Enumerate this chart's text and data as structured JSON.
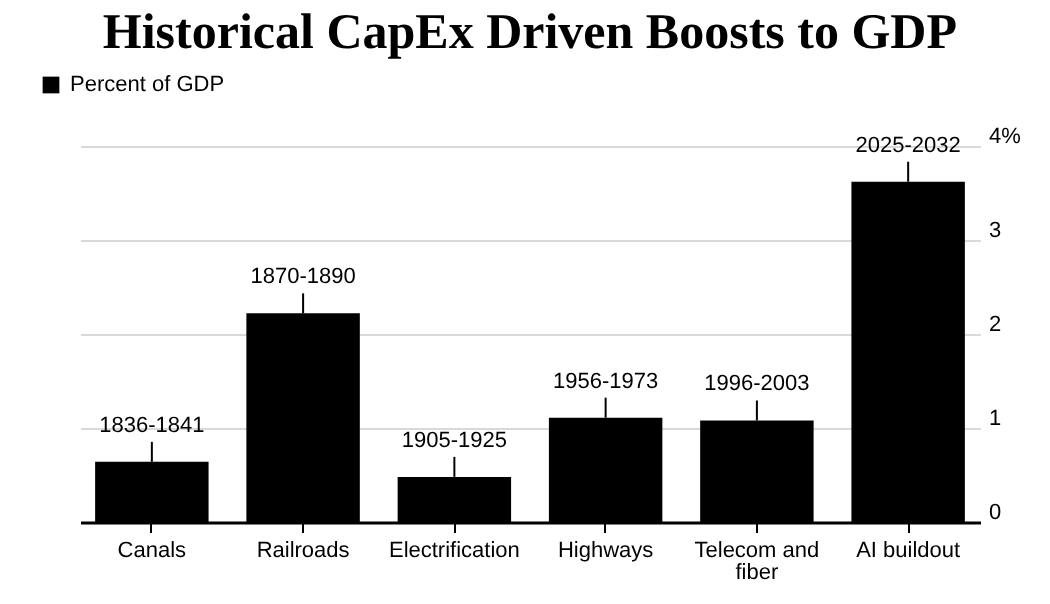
{
  "chart_data": {
    "type": "bar",
    "title": "Historical CapEx Driven Boosts to GDP",
    "categories": [
      "Canals",
      "Railroads",
      "Electrification",
      "Highways",
      "Telecom and fiber",
      "AI buildout"
    ],
    "series": [
      {
        "name": "Percent of GDP",
        "color": "#000000",
        "values": [
          0.64,
          2.22,
          0.48,
          1.11,
          1.08,
          3.62
        ]
      }
    ],
    "ylim": [
      0,
      4
    ],
    "yticks": [
      0,
      1,
      2,
      3,
      {
        "value": 4,
        "label": "4%"
      }
    ],
    "grid": "y",
    "legend": "top left",
    "annotations": [
      {
        "text": "1836-1841",
        "x": "Canals",
        "y": 0.64
      },
      {
        "text": "1870-1890",
        "x": "Railroads",
        "y": 2.22
      },
      {
        "text": "1905-1925",
        "x": "Electrification",
        "y": 0.48
      },
      {
        "text": "1956-1973",
        "x": "Highways",
        "y": 1.11
      },
      {
        "text": "1996-2003",
        "x": "Telecom and fiber",
        "y": 1.08
      },
      {
        "text": "2025-2032",
        "x": "AI buildout",
        "y": 3.62
      }
    ]
  }
}
